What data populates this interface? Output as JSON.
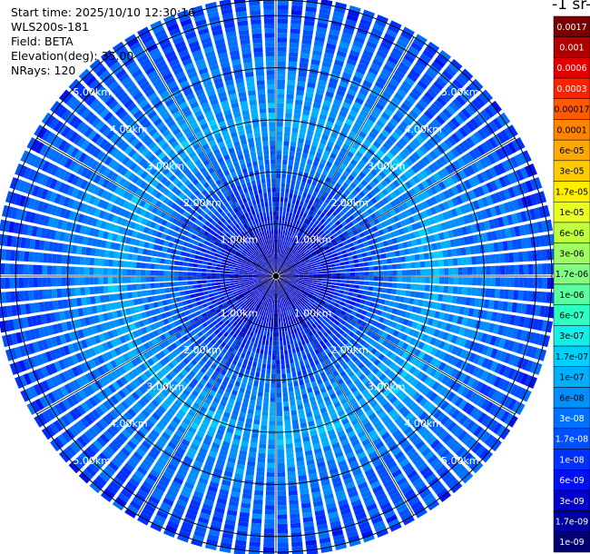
{
  "info": {
    "start_time": "Start time: 2025/10/10 12:30:16",
    "instrument": "WLS200s-181",
    "field": "Field: BETA",
    "elevation": "Elevation(deg): 35.00",
    "nrays": "NRays: 120"
  },
  "colorbar": {
    "unit_label": "-1 sr-",
    "ticks": [
      "0.0017",
      "0.001",
      "0.0006",
      "0.0003",
      "0.00017",
      "0.0001",
      "6e-05",
      "3e-05",
      "1.7e-05",
      "1e-05",
      "6e-06",
      "3e-06",
      "1.7e-06",
      "1e-06",
      "6e-07",
      "3e-07",
      "1.7e-07",
      "1e-07",
      "6e-08",
      "3e-08",
      "1.7e-08",
      "1e-08",
      "6e-09",
      "3e-09",
      "1.7e-09",
      "1e-09"
    ],
    "colors": [
      "#7a0000",
      "#b00000",
      "#e00000",
      "#ff2000",
      "#ff5a00",
      "#ff8400",
      "#ffa800",
      "#ffcc00",
      "#ffee00",
      "#e8ff20",
      "#c0ff40",
      "#a0ff60",
      "#80ff80",
      "#5cffa0",
      "#30ffc4",
      "#10f0e8",
      "#00d0ff",
      "#00b0ff",
      "#0090ff",
      "#0070ff",
      "#0050ff",
      "#0030ff",
      "#0010ee",
      "#0000cc",
      "#00009e",
      "#000070"
    ]
  },
  "chart_data": {
    "type": "heatmap",
    "projection": "polar (plan position indicator)",
    "title": "",
    "field": "BETA",
    "elevation_deg": 35.0,
    "n_rays": 120,
    "range_rings_km": [
      1,
      2,
      3,
      4,
      5
    ],
    "ring_labels": [
      "1.00km",
      "2.00km",
      "3.00km",
      "4.00km",
      "5.00km"
    ],
    "azimuth_spokes_deg": [
      0,
      30,
      60,
      90,
      120,
      150,
      180,
      210,
      240,
      270,
      300,
      330
    ],
    "radial_profile_log10": [
      {
        "range_km": 0.0,
        "value": -8.8
      },
      {
        "range_km": 1.0,
        "value": -8.2
      },
      {
        "range_km": 2.0,
        "value": -7.6
      },
      {
        "range_km": 3.0,
        "value": -7.1
      },
      {
        "range_km": 4.0,
        "value": -7.5
      },
      {
        "range_km": 5.0,
        "value": -7.8
      },
      {
        "range_km": 5.5,
        "value": -7.9
      }
    ],
    "color_scale": "log",
    "vmin": 1e-09,
    "vmax": 0.0017
  }
}
